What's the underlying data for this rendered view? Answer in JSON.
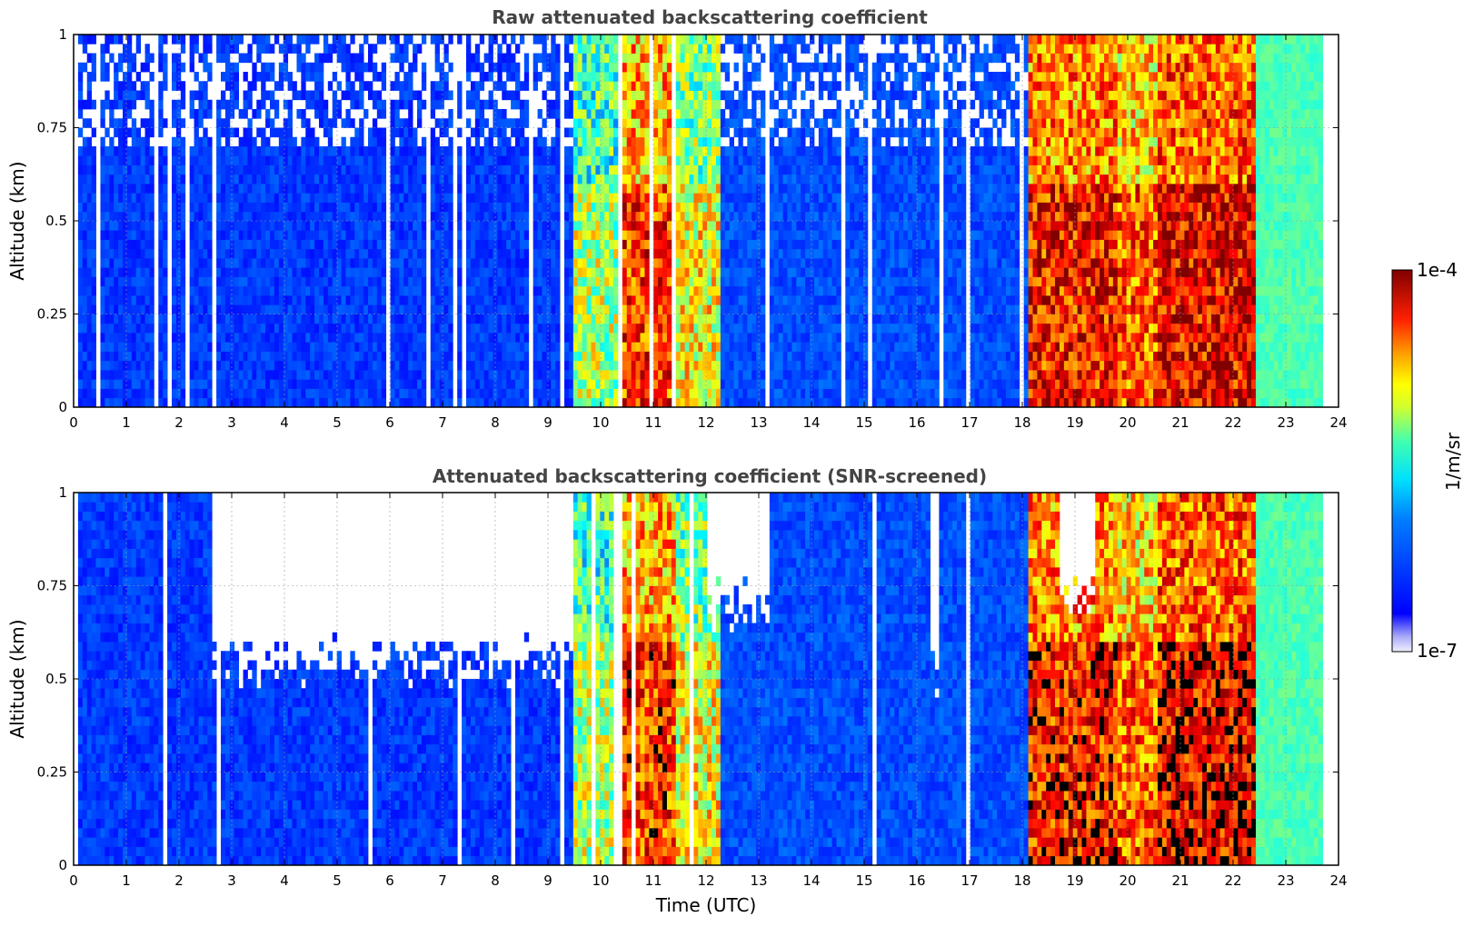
{
  "chart_data": [
    {
      "type": "heatmap",
      "title": "Raw attenuated backscattering coefficient",
      "xlabel": "",
      "ylabel": "Altitude (km)",
      "xlim": [
        0,
        24
      ],
      "ylim": [
        0,
        1
      ],
      "x_ticks": [
        "0",
        "1",
        "2",
        "3",
        "4",
        "5",
        "6",
        "7",
        "8",
        "9",
        "10",
        "11",
        "12",
        "13",
        "14",
        "15",
        "16",
        "17",
        "18",
        "19",
        "20",
        "21",
        "22",
        "23",
        "24"
      ],
      "y_ticks": [
        "0",
        "0.25",
        "0.5",
        "0.75",
        "1"
      ],
      "grid": true,
      "screened": false,
      "data_end_hour": 23.7,
      "regimes": [
        {
          "start": 0.0,
          "end": 9.5,
          "level": 0.18
        },
        {
          "start": 9.5,
          "end": 10.3,
          "level": 0.55
        },
        {
          "start": 10.3,
          "end": 11.4,
          "level": 0.82
        },
        {
          "start": 11.4,
          "end": 12.3,
          "level": 0.62
        },
        {
          "start": 12.3,
          "end": 18.1,
          "level": 0.2
        },
        {
          "start": 18.1,
          "end": 19.8,
          "level": 0.86
        },
        {
          "start": 19.8,
          "end": 20.6,
          "level": 0.78
        },
        {
          "start": 20.6,
          "end": 22.4,
          "level": 0.9
        },
        {
          "start": 22.4,
          "end": 23.7,
          "level": 0.45
        }
      ]
    },
    {
      "type": "heatmap",
      "title": "Attenuated backscattering coefficient (SNR-screened)",
      "xlabel": "Time (UTC)",
      "ylabel": "Altitude (km)",
      "xlim": [
        0,
        24
      ],
      "ylim": [
        0,
        1
      ],
      "x_ticks": [
        "0",
        "1",
        "2",
        "3",
        "4",
        "5",
        "6",
        "7",
        "8",
        "9",
        "10",
        "11",
        "12",
        "13",
        "14",
        "15",
        "16",
        "17",
        "18",
        "19",
        "20",
        "21",
        "22",
        "23",
        "24"
      ],
      "y_ticks": [
        "0",
        "0.25",
        "0.5",
        "0.75",
        "1"
      ],
      "grid": true,
      "screened": true,
      "data_end_hour": 23.7,
      "regimes": [
        {
          "start": 0.0,
          "end": 9.5,
          "level": 0.18
        },
        {
          "start": 9.5,
          "end": 10.3,
          "level": 0.55
        },
        {
          "start": 10.3,
          "end": 11.4,
          "level": 0.82
        },
        {
          "start": 11.4,
          "end": 12.3,
          "level": 0.62
        },
        {
          "start": 12.3,
          "end": 18.1,
          "level": 0.2
        },
        {
          "start": 18.1,
          "end": 19.8,
          "level": 0.86
        },
        {
          "start": 19.8,
          "end": 20.6,
          "level": 0.78
        },
        {
          "start": 20.6,
          "end": 22.4,
          "level": 0.9
        },
        {
          "start": 22.4,
          "end": 23.7,
          "level": 0.45
        }
      ],
      "screened_regions": [
        {
          "start": 2.6,
          "end": 9.4,
          "min_altitude": 0.55
        },
        {
          "start": 12.0,
          "end": 13.2,
          "min_altitude": 0.7
        },
        {
          "start": 16.2,
          "end": 16.4,
          "min_altitude": 0.52
        },
        {
          "start": 18.7,
          "end": 19.3,
          "min_altitude": 0.7
        }
      ]
    }
  ],
  "colorbar": {
    "min_label": "1e-7",
    "max_label": "1e-4",
    "label": "1/m/sr",
    "colormap": "jet"
  }
}
